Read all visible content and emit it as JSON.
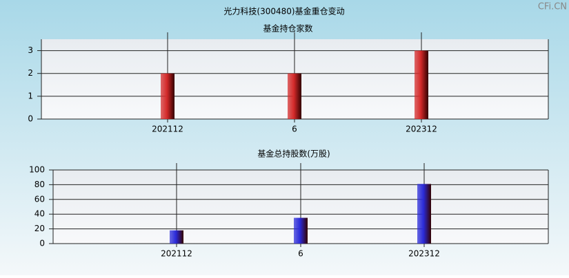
{
  "title": "光力科技(300480)基金重仓变动",
  "watermark": "CFi.CN",
  "chart_data": [
    {
      "type": "bar",
      "title": "基金持仓家数",
      "categories": [
        "202112",
        "6",
        "202312"
      ],
      "values": [
        2,
        2,
        3
      ],
      "color": "#d42a2a",
      "ylim": [
        0,
        3.5
      ],
      "yticks": [
        0,
        1,
        2,
        3
      ],
      "grid": true
    },
    {
      "type": "bar",
      "title": "基金总持股数(万股)",
      "categories": [
        "202112",
        "6",
        "202312"
      ],
      "values": [
        18,
        35,
        81
      ],
      "color": "#2a2ad8",
      "ylim": [
        0,
        100
      ],
      "yticks": [
        0,
        20,
        40,
        60,
        80,
        100
      ],
      "grid": true
    }
  ]
}
